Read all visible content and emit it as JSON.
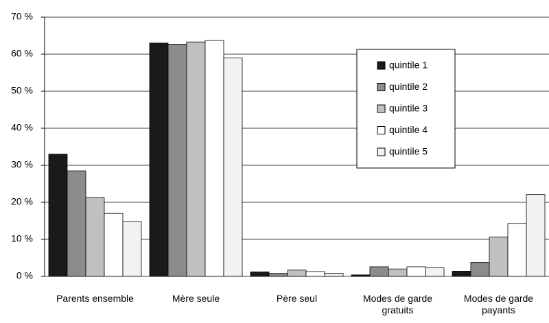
{
  "chart_data": {
    "type": "bar",
    "categories": [
      "Parents ensemble",
      "Mère seule",
      "Père seul",
      "Modes de garde gratuits",
      "Modes de garde payants"
    ],
    "series": [
      {
        "name": "quintile 1",
        "color": "#1a1a1a",
        "values": [
          33,
          63,
          1.2,
          0.4,
          1.4
        ]
      },
      {
        "name": "quintile 2",
        "color": "#8c8c8c",
        "values": [
          28.5,
          62.7,
          0.8,
          2.6,
          3.8
        ]
      },
      {
        "name": "quintile 3",
        "color": "#c0c0c0",
        "values": [
          21.3,
          63.3,
          1.7,
          2.0,
          10.6
        ]
      },
      {
        "name": "quintile 4",
        "color": "#ffffff",
        "values": [
          17,
          63.7,
          1.3,
          2.6,
          14.3
        ]
      },
      {
        "name": "quintile 5",
        "color": "#f2f2f2",
        "values": [
          14.8,
          59,
          0.8,
          2.3,
          22.1
        ]
      }
    ],
    "ylim": [
      0,
      70
    ],
    "yticks": [
      {
        "value": 0,
        "label": "0 %"
      },
      {
        "value": 10,
        "label": "10 %"
      },
      {
        "value": 20,
        "label": "20 %"
      },
      {
        "value": 30,
        "label": "30 %"
      },
      {
        "value": 40,
        "label": "40 %"
      },
      {
        "value": 50,
        "label": "50 %"
      },
      {
        "value": 60,
        "label": "60 %"
      },
      {
        "value": 70,
        "label": "70 %"
      }
    ],
    "grid": true
  }
}
